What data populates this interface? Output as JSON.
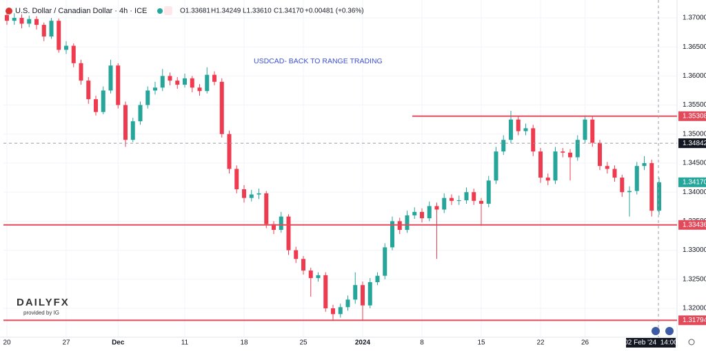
{
  "chart_data": {
    "type": "candlestick",
    "legend": {
      "symbol": "U.S. Dollar / Canadian Dollar · 4h · ICE",
      "open": "O1.33681",
      "high": "H1.34249",
      "low": "L1.33610",
      "close": "C1.34170",
      "change": "+0.00481 (+0.36%)"
    },
    "annotation": "USDCAD- BACK TO RANGE TRADING",
    "logo": "DAILYFX",
    "logo_sub": "provided by IG",
    "up_color": "#26a69a",
    "down_color": "#ef3b4f",
    "level_color": "#e04a5a",
    "grid": true,
    "ylim": [
      1.31502,
      1.37308
    ],
    "yticks": [
      {
        "value": 1.37,
        "label": "1.37000"
      },
      {
        "value": 1.365,
        "label": "1.36500"
      },
      {
        "value": 1.36,
        "label": "1.36000"
      },
      {
        "value": 1.355,
        "label": "1.35500"
      },
      {
        "value": 1.35,
        "label": "1.35000"
      },
      {
        "value": 1.345,
        "label": "1.34500"
      },
      {
        "value": 1.34,
        "label": "1.34000"
      },
      {
        "value": 1.335,
        "label": "1.33500"
      },
      {
        "value": 1.33,
        "label": "1.33000"
      },
      {
        "value": 1.325,
        "label": "1.32500"
      },
      {
        "value": 1.32,
        "label": "1.32000"
      }
    ],
    "levels": [
      {
        "value": 1.35308,
        "label": "1.35308"
      },
      {
        "value": 1.33436,
        "label": "1.33436"
      },
      {
        "value": 1.31794,
        "label": "1.31794"
      }
    ],
    "crosshair": {
      "value": 1.34842,
      "label": "1.34842",
      "time": "02 Feb '24  14:00"
    },
    "last_label": "1.34170",
    "categories": [
      "20",
      null,
      null,
      null,
      null,
      null,
      null,
      null,
      "27",
      null,
      null,
      null,
      null,
      null,
      null,
      "Dec",
      null,
      null,
      null,
      null,
      null,
      null,
      null,
      null,
      "11",
      null,
      null,
      null,
      null,
      null,
      null,
      null,
      "18",
      null,
      null,
      null,
      null,
      null,
      null,
      null,
      "25",
      null,
      null,
      null,
      null,
      null,
      null,
      null,
      "2024",
      null,
      null,
      null,
      null,
      null,
      null,
      null,
      "8",
      null,
      null,
      null,
      null,
      null,
      null,
      null,
      "15",
      null,
      null,
      null,
      null,
      null,
      null,
      null,
      "22",
      null,
      null,
      null,
      null,
      null,
      "26",
      null,
      null,
      null,
      null,
      null,
      null,
      null,
      null,
      null,
      null
    ],
    "ohlc": [
      [
        1.3705,
        1.3712,
        1.3688,
        1.3695
      ],
      [
        1.3695,
        1.3708,
        1.3688,
        1.37
      ],
      [
        1.37,
        1.3706,
        1.3682,
        1.369
      ],
      [
        1.369,
        1.3704,
        1.3684,
        1.3698
      ],
      [
        1.3698,
        1.3703,
        1.368,
        1.3688
      ],
      [
        1.3688,
        1.3692,
        1.366,
        1.3668
      ],
      [
        1.3668,
        1.37,
        1.3664,
        1.3695
      ],
      [
        1.3695,
        1.3699,
        1.364,
        1.3645
      ],
      [
        1.3645,
        1.366,
        1.3638,
        1.3652
      ],
      [
        1.3652,
        1.3656,
        1.3615,
        1.3622
      ],
      [
        1.3622,
        1.3628,
        1.3585,
        1.3592
      ],
      [
        1.3592,
        1.3598,
        1.3552,
        1.356
      ],
      [
        1.356,
        1.3566,
        1.3532,
        1.3538
      ],
      [
        1.3538,
        1.3582,
        1.3534,
        1.3575
      ],
      [
        1.3575,
        1.3628,
        1.357,
        1.3618
      ],
      [
        1.3618,
        1.3622,
        1.3544,
        1.355
      ],
      [
        1.355,
        1.3556,
        1.3478,
        1.349
      ],
      [
        1.349,
        1.3528,
        1.3486,
        1.3522
      ],
      [
        1.3522,
        1.3556,
        1.3516,
        1.355
      ],
      [
        1.355,
        1.3582,
        1.3544,
        1.3575
      ],
      [
        1.3575,
        1.359,
        1.3568,
        1.358
      ],
      [
        1.358,
        1.3612,
        1.3574,
        1.36
      ],
      [
        1.36,
        1.3606,
        1.3584,
        1.3592
      ],
      [
        1.3592,
        1.3598,
        1.3578,
        1.3585
      ],
      [
        1.3585,
        1.3604,
        1.358,
        1.3596
      ],
      [
        1.3596,
        1.36,
        1.3572,
        1.358
      ],
      [
        1.358,
        1.3586,
        1.3566,
        1.3574
      ],
      [
        1.3574,
        1.3615,
        1.357,
        1.3602
      ],
      [
        1.3602,
        1.3608,
        1.3584,
        1.359
      ],
      [
        1.359,
        1.3596,
        1.3494,
        1.35
      ],
      [
        1.35,
        1.3506,
        1.3432,
        1.344
      ],
      [
        1.344,
        1.3446,
        1.3398,
        1.3405
      ],
      [
        1.3405,
        1.3412,
        1.3382,
        1.339
      ],
      [
        1.339,
        1.3404,
        1.3384,
        1.3396
      ],
      [
        1.3396,
        1.3406,
        1.3388,
        1.3398
      ],
      [
        1.3398,
        1.3402,
        1.3338,
        1.3345
      ],
      [
        1.3345,
        1.335,
        1.3328,
        1.3335
      ],
      [
        1.3335,
        1.3366,
        1.333,
        1.3358
      ],
      [
        1.3358,
        1.3362,
        1.3292,
        1.33
      ],
      [
        1.33,
        1.3306,
        1.3278,
        1.3285
      ],
      [
        1.3285,
        1.329,
        1.3258,
        1.3265
      ],
      [
        1.3265,
        1.327,
        1.322,
        1.3252
      ],
      [
        1.3252,
        1.3262,
        1.3246,
        1.3257
      ],
      [
        1.3257,
        1.3262,
        1.3194,
        1.32
      ],
      [
        1.32,
        1.3206,
        1.3178,
        1.319
      ],
      [
        1.319,
        1.3208,
        1.3184,
        1.3202
      ],
      [
        1.3202,
        1.3222,
        1.3196,
        1.3215
      ],
      [
        1.3215,
        1.3262,
        1.3208,
        1.324
      ],
      [
        1.324,
        1.3246,
        1.318,
        1.3205
      ],
      [
        1.3205,
        1.3252,
        1.32,
        1.3245
      ],
      [
        1.3245,
        1.3262,
        1.324,
        1.3256
      ],
      [
        1.3256,
        1.3312,
        1.325,
        1.3305
      ],
      [
        1.3305,
        1.3358,
        1.33,
        1.335
      ],
      [
        1.335,
        1.3356,
        1.3328,
        1.3335
      ],
      [
        1.3335,
        1.3368,
        1.333,
        1.336
      ],
      [
        1.336,
        1.3374,
        1.3354,
        1.3366
      ],
      [
        1.3366,
        1.3372,
        1.3348,
        1.3355
      ],
      [
        1.3355,
        1.3384,
        1.335,
        1.3376
      ],
      [
        1.3376,
        1.3382,
        1.3285,
        1.337
      ],
      [
        1.337,
        1.3398,
        1.3364,
        1.339
      ],
      [
        1.339,
        1.3396,
        1.3378,
        1.3385
      ],
      [
        1.3385,
        1.3394,
        1.3378,
        1.3386
      ],
      [
        1.3386,
        1.3408,
        1.338,
        1.34
      ],
      [
        1.34,
        1.3406,
        1.3378,
        1.3385
      ],
      [
        1.3385,
        1.339,
        1.3342,
        1.338
      ],
      [
        1.338,
        1.3428,
        1.3374,
        1.342
      ],
      [
        1.342,
        1.3478,
        1.3414,
        1.347
      ],
      [
        1.347,
        1.3498,
        1.3464,
        1.349
      ],
      [
        1.349,
        1.354,
        1.3484,
        1.3525
      ],
      [
        1.3525,
        1.353,
        1.3498,
        1.3505
      ],
      [
        1.3505,
        1.3518,
        1.3498,
        1.351
      ],
      [
        1.351,
        1.3516,
        1.3462,
        1.347
      ],
      [
        1.347,
        1.3476,
        1.3416,
        1.3425
      ],
      [
        1.3425,
        1.3432,
        1.3412,
        1.342
      ],
      [
        1.342,
        1.3478,
        1.3414,
        1.347
      ],
      [
        1.347,
        1.3476,
        1.346,
        1.3468
      ],
      [
        1.3468,
        1.3474,
        1.342,
        1.346
      ],
      [
        1.346,
        1.3498,
        1.3454,
        1.349
      ],
      [
        1.349,
        1.3532,
        1.3484,
        1.3525
      ],
      [
        1.3525,
        1.353,
        1.3478,
        1.3485
      ],
      [
        1.3485,
        1.349,
        1.3438,
        1.3445
      ],
      [
        1.3445,
        1.3452,
        1.3432,
        1.344
      ],
      [
        1.344,
        1.3446,
        1.3418,
        1.3425
      ],
      [
        1.3425,
        1.343,
        1.3392,
        1.34
      ],
      [
        1.34,
        1.341,
        1.3358,
        1.3402
      ],
      [
        1.3402,
        1.3452,
        1.3396,
        1.3445
      ],
      [
        1.3445,
        1.3462,
        1.3438,
        1.345
      ],
      [
        1.345,
        1.3456,
        1.3358,
        1.3368
      ],
      [
        1.33681,
        1.34249,
        1.3361,
        1.3417
      ]
    ]
  }
}
